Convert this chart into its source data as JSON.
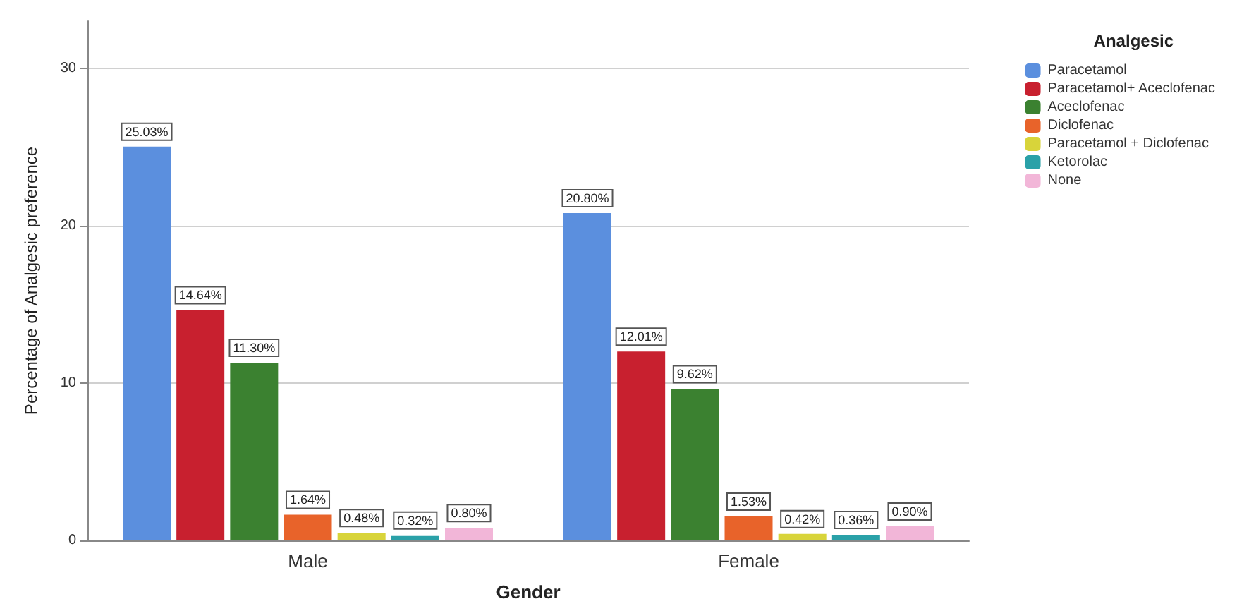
{
  "chart_data": {
    "type": "bar",
    "xlabel": "Gender",
    "ylabel": "Percentage of Analgesic preference",
    "legend_title": "Analgesic",
    "categories": [
      "Male",
      "Female"
    ],
    "series": [
      {
        "name": "Paracetamol",
        "color": "#5b8fde",
        "values": [
          25.03,
          20.8
        ],
        "value_labels": [
          "25.03%",
          "20.80%"
        ]
      },
      {
        "name": "Paracetamol+ Aceclofenac",
        "color": "#c8202f",
        "values": [
          14.64,
          12.01
        ],
        "value_labels": [
          "14.64%",
          "12.01%"
        ]
      },
      {
        "name": "Aceclofenac",
        "color": "#3b8130",
        "values": [
          11.3,
          9.62
        ],
        "value_labels": [
          "11.30%",
          "9.62%"
        ]
      },
      {
        "name": "Diclofenac",
        "color": "#e8632a",
        "values": [
          1.64,
          1.53
        ],
        "value_labels": [
          "1.64%",
          "1.53%"
        ]
      },
      {
        "name": "Paracetamol + Diclofenac",
        "color": "#d8d43a",
        "values": [
          0.48,
          0.42
        ],
        "value_labels": [
          "0.48%",
          "0.42%"
        ]
      },
      {
        "name": "Ketorolac",
        "color": "#2aa1a8",
        "values": [
          0.32,
          0.36
        ],
        "value_labels": [
          "0.32%",
          "0.36%"
        ]
      },
      {
        "name": "None",
        "color": "#f2b6d8",
        "values": [
          0.8,
          0.9
        ],
        "value_labels": [
          "0.80%",
          "0.90%"
        ]
      }
    ],
    "ylim": [
      0,
      33
    ],
    "yticks": [
      0,
      10,
      20,
      30
    ],
    "grid": "y",
    "legend": "top right"
  }
}
